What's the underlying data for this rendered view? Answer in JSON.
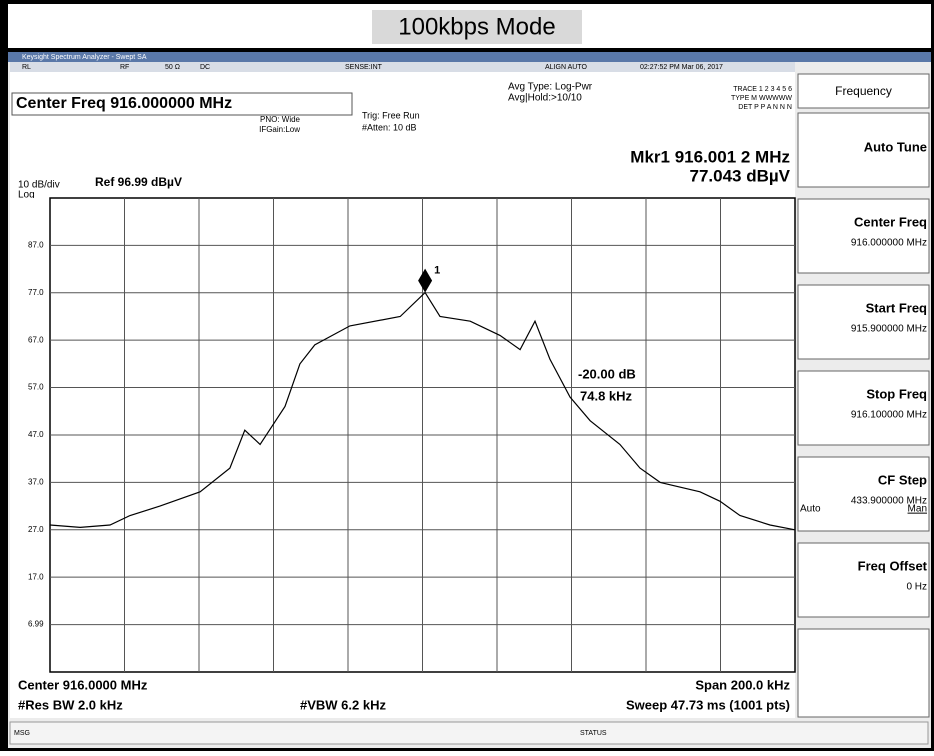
{
  "header": {
    "title": "100kbps Mode"
  },
  "window": {
    "title": "Keysight Spectrum Analyzer - Swept SA"
  },
  "status_row": [
    "RL",
    "RF",
    "50 Ω",
    "DC",
    "SENSE:INT",
    "ALIGN AUTO",
    "02:27:52 PM Mar 06, 2017"
  ],
  "settings": {
    "center": "Center Freq 916.000000 MHz",
    "pno": "PNO: Wide",
    "ifgain": "IFGain:Low",
    "trig": "Trig: Free Run",
    "atten": "#Atten: 10 dB",
    "avg_type": "Avg Type: Log-Pwr",
    "avg_hold": "Avg|Hold:>10/10",
    "trace": "TRACE 1 2 3 4 5 6",
    "trace_type": "TYPE M WWWWW",
    "trace_det": "DET P P A N N N"
  },
  "marker": {
    "freq": "Mkr1 916.001 2 MHz",
    "level": "77.043 dBµV",
    "id": "1"
  },
  "scale": {
    "div": "10 dB/div",
    "mode": "Log",
    "ref": "Ref 96.99 dBµV"
  },
  "chart_data": {
    "type": "line",
    "x": [
      915.9,
      915.9081,
      915.9161,
      915.9215,
      915.9295,
      915.9403,
      915.9483,
      915.9523,
      915.9564,
      915.9631,
      915.9671,
      915.9711,
      915.9805,
      915.994,
      916.0007,
      916.0047,
      916.0128,
      916.0208,
      916.0262,
      916.0302,
      916.0342,
      916.0396,
      916.045,
      916.053,
      916.0584,
      916.0638,
      916.0745,
      916.0799,
      916.0852,
      916.0933,
      916.1
    ],
    "values": [
      28,
      27.5,
      28,
      30,
      32,
      35,
      40,
      48,
      45,
      53,
      62,
      66,
      70,
      72,
      77.04,
      72,
      71,
      68,
      65,
      71,
      63,
      55,
      50,
      45,
      40,
      37,
      35,
      33,
      30,
      28,
      27
    ],
    "color": "#000000",
    "xlim": [
      915.9,
      916.1
    ],
    "ylim": [
      -3.01,
      96.99
    ],
    "yticks": [
      {
        "value": 87,
        "label": "87.0"
      },
      {
        "value": 77,
        "label": "77.0"
      },
      {
        "value": 67,
        "label": "67.0"
      },
      {
        "value": 57,
        "label": "57.0"
      },
      {
        "value": 47,
        "label": "47.0"
      },
      {
        "value": 37,
        "label": "37.0"
      },
      {
        "value": 27,
        "label": "27.0"
      },
      {
        "value": 17,
        "label": "17.0"
      },
      6.99
    ],
    "grid": true,
    "annotations": [
      "-20.00 dB",
      "74.8 kHz"
    ]
  },
  "footer": {
    "center": "Center 916.0000 MHz",
    "span": "Span 200.0 kHz",
    "rbw": "#Res BW 2.0 kHz",
    "vbw": "#VBW 6.2 kHz",
    "sweep": "Sweep  47.73 ms (1001 pts)",
    "msg": "MSG",
    "status": "STATUS"
  },
  "softkeys": {
    "menu": "Frequency",
    "items": [
      {
        "label": "Auto Tune"
      },
      {
        "label": "Center Freq",
        "value": "916.000000 MHz"
      },
      {
        "label": "Start Freq",
        "value": "915.900000 MHz"
      },
      {
        "label": "Stop Freq",
        "value": "916.100000 MHz"
      },
      {
        "label": "CF Step",
        "value": "433.900000 MHz",
        "auto": "Auto",
        "man": "Man"
      },
      {
        "label": "Freq Offset",
        "value": "0 Hz"
      }
    ]
  }
}
